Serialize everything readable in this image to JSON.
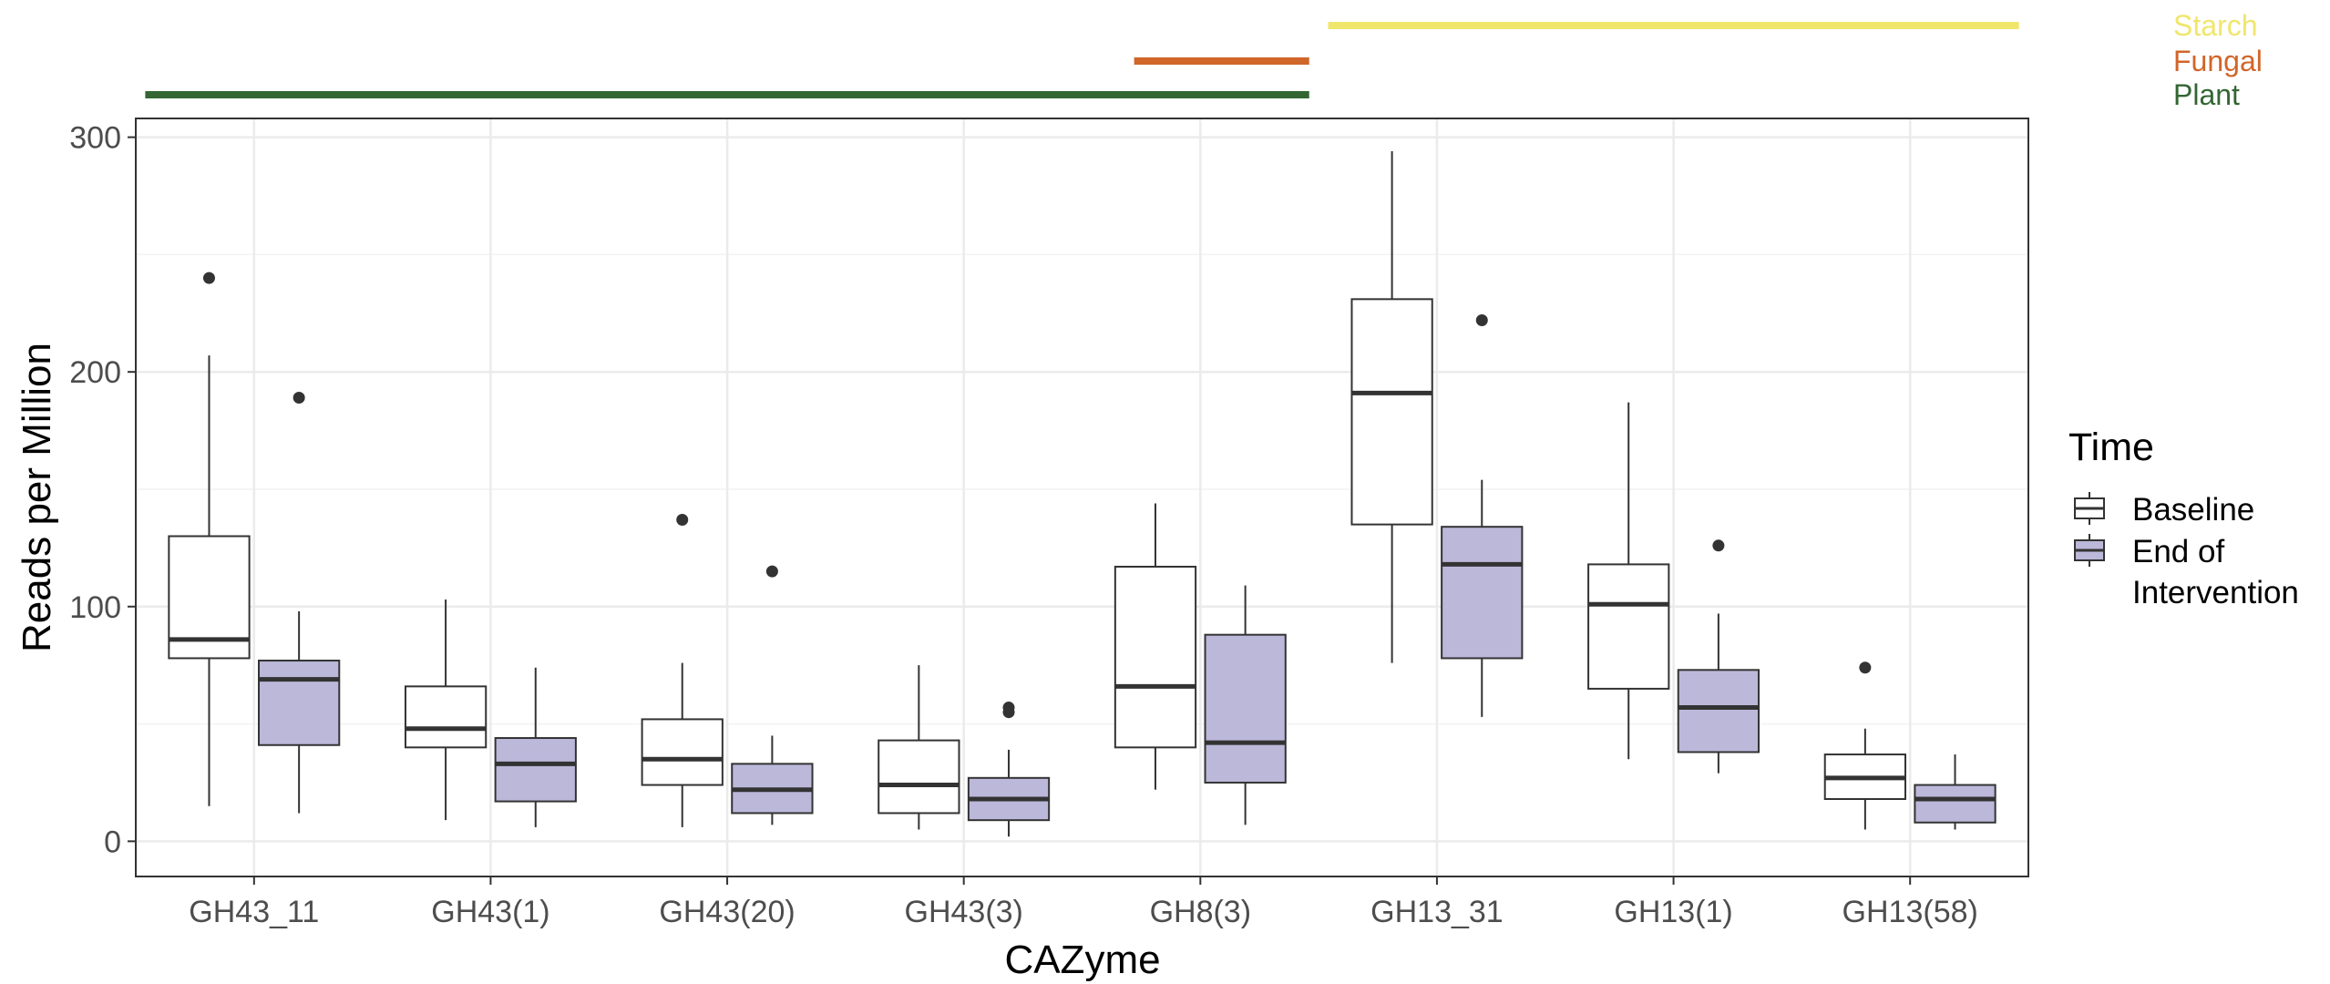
{
  "chart_data": {
    "type": "boxplot",
    "xlabel": "CAZyme",
    "ylabel": "Reads per Million",
    "ylim": [
      -15,
      308
    ],
    "yticks": [
      0,
      100,
      200,
      300
    ],
    "grid": true,
    "categories": [
      "GH43_11",
      "GH43(1)",
      "GH43(20)",
      "GH43(3)",
      "GH8(3)",
      "GH13_31",
      "GH13(1)",
      "GH13(58)"
    ],
    "legend": {
      "title": "Time",
      "entries": [
        {
          "label_line1": "Baseline",
          "label_line2": "",
          "fill": "#ffffff"
        },
        {
          "label_line1": "End of",
          "label_line2": "Intervention",
          "fill": "#bcb8da"
        }
      ],
      "placement": "right"
    },
    "series": [
      {
        "name": "Baseline",
        "fill": "#ffffff",
        "boxes": [
          {
            "whisker_low": 15,
            "q1": 78,
            "median": 86,
            "q3": 130,
            "whisker_high": 207,
            "outliers": [
              240
            ]
          },
          {
            "whisker_low": 9,
            "q1": 40,
            "median": 48,
            "q3": 66,
            "whisker_high": 103,
            "outliers": []
          },
          {
            "whisker_low": 6,
            "q1": 24,
            "median": 35,
            "q3": 52,
            "whisker_high": 76,
            "outliers": [
              137
            ]
          },
          {
            "whisker_low": 5,
            "q1": 12,
            "median": 24,
            "q3": 43,
            "whisker_high": 75,
            "outliers": []
          },
          {
            "whisker_low": 22,
            "q1": 40,
            "median": 66,
            "q3": 117,
            "whisker_high": 144,
            "outliers": []
          },
          {
            "whisker_low": 76,
            "q1": 135,
            "median": 191,
            "q3": 231,
            "whisker_high": 294,
            "outliers": []
          },
          {
            "whisker_low": 35,
            "q1": 65,
            "median": 101,
            "q3": 118,
            "whisker_high": 187,
            "outliers": []
          },
          {
            "whisker_low": 5,
            "q1": 18,
            "median": 27,
            "q3": 37,
            "whisker_high": 48,
            "outliers": [
              74
            ]
          }
        ]
      },
      {
        "name": "End of Intervention",
        "fill": "#bcb8da",
        "boxes": [
          {
            "whisker_low": 12,
            "q1": 41,
            "median": 69,
            "q3": 77,
            "whisker_high": 98,
            "outliers": [
              189
            ]
          },
          {
            "whisker_low": 6,
            "q1": 17,
            "median": 33,
            "q3": 44,
            "whisker_high": 74,
            "outliers": []
          },
          {
            "whisker_low": 7,
            "q1": 12,
            "median": 22,
            "q3": 33,
            "whisker_high": 45,
            "outliers": [
              115
            ]
          },
          {
            "whisker_low": 2,
            "q1": 9,
            "median": 18,
            "q3": 27,
            "whisker_high": 39,
            "outliers": [
              55,
              57
            ]
          },
          {
            "whisker_low": 7,
            "q1": 25,
            "median": 42,
            "q3": 88,
            "whisker_high": 109,
            "outliers": []
          },
          {
            "whisker_low": 53,
            "q1": 78,
            "median": 118,
            "q3": 134,
            "whisker_high": 154,
            "outliers": [
              222
            ]
          },
          {
            "whisker_low": 29,
            "q1": 38,
            "median": 57,
            "q3": 73,
            "whisker_high": 97,
            "outliers": [
              126
            ]
          },
          {
            "whisker_low": 5,
            "q1": 8,
            "median": 18,
            "q3": 24,
            "whisker_high": 37,
            "outliers": []
          }
        ]
      }
    ],
    "category_bars": [
      {
        "name": "Starch",
        "color": "#f0e66c",
        "from": "GH13_31",
        "to": "GH13(58)"
      },
      {
        "name": "Fungal",
        "color": "#d0662a",
        "from": "GH8(3)",
        "to": "GH8(3)"
      },
      {
        "name": "Plant",
        "color": "#336633",
        "from": "GH43_11",
        "to": "GH8(3)"
      }
    ]
  }
}
